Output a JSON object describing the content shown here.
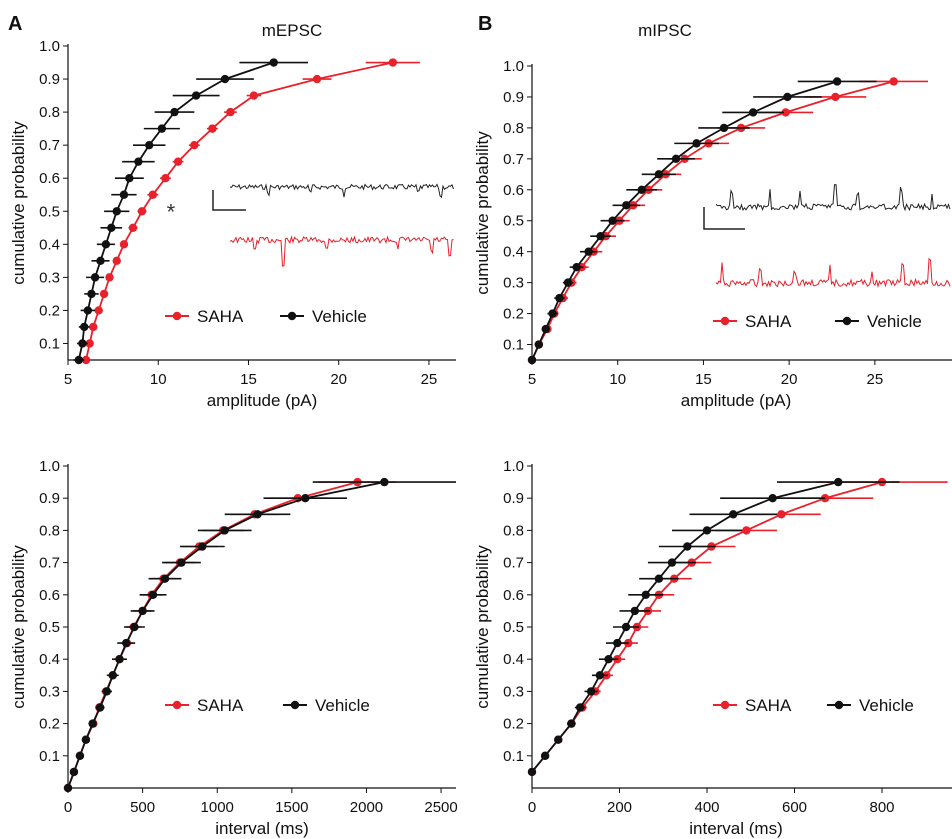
{
  "panel_letters": [
    "A",
    "B"
  ],
  "colors": {
    "SAHA": "#e8212b",
    "Vehicle": "#111111"
  },
  "chart_data": [
    {
      "id": "A-amp",
      "type": "line",
      "title": "mEPSC",
      "xlabel": "amplitude (pA)",
      "ylabel": "cumulative probability",
      "xlim": [
        5,
        26.5
      ],
      "ylim": [
        0.05,
        1.0
      ],
      "xticks": [
        5,
        10,
        15,
        20,
        25
      ],
      "yticks": [
        0.1,
        0.2,
        0.3,
        0.4,
        0.5,
        0.6,
        0.7,
        0.8,
        0.9,
        1.0
      ],
      "annotation": "*",
      "legend": [
        "SAHA",
        "Vehicle"
      ],
      "series": [
        {
          "name": "SAHA",
          "color": "#e8212b",
          "y": [
            0.05,
            0.1,
            0.15,
            0.2,
            0.25,
            0.3,
            0.35,
            0.4,
            0.45,
            0.5,
            0.55,
            0.6,
            0.65,
            0.7,
            0.75,
            0.8,
            0.85,
            0.9,
            0.95
          ],
          "x": [
            6.0,
            6.2,
            6.4,
            6.7,
            7.0,
            7.3,
            7.7,
            8.1,
            8.6,
            9.1,
            9.7,
            10.4,
            11.1,
            12.0,
            13.0,
            14.0,
            15.3,
            18.8,
            23.0
          ],
          "err": [
            0.15,
            0.15,
            0.15,
            0.15,
            0.2,
            0.2,
            0.2,
            0.2,
            0.25,
            0.25,
            0.3,
            0.3,
            0.3,
            0.3,
            0.3,
            0.35,
            0.4,
            0.8,
            1.5
          ]
        },
        {
          "name": "Vehicle",
          "color": "#111111",
          "y": [
            0.05,
            0.1,
            0.15,
            0.2,
            0.25,
            0.3,
            0.35,
            0.4,
            0.45,
            0.5,
            0.55,
            0.6,
            0.65,
            0.7,
            0.75,
            0.8,
            0.85,
            0.9,
            0.95
          ],
          "x": [
            5.6,
            5.8,
            5.9,
            6.1,
            6.3,
            6.5,
            6.8,
            7.1,
            7.4,
            7.7,
            8.1,
            8.4,
            8.9,
            9.5,
            10.2,
            10.9,
            12.1,
            13.7,
            16.4
          ],
          "err": [
            0.3,
            0.3,
            0.3,
            0.4,
            0.4,
            0.5,
            0.5,
            0.5,
            0.6,
            0.7,
            0.7,
            0.8,
            0.9,
            0.9,
            1.0,
            1.1,
            1.3,
            1.6,
            1.9
          ]
        }
      ]
    },
    {
      "id": "B-amp",
      "type": "line",
      "title": "mIPSC",
      "xlabel": "amplitude (pA)",
      "ylabel": "cumulative probability",
      "xlim": [
        5,
        29.5
      ],
      "ylim": [
        0.05,
        1.0
      ],
      "xticks": [
        5,
        10,
        15,
        20,
        25
      ],
      "yticks": [
        0.1,
        0.2,
        0.3,
        0.4,
        0.5,
        0.6,
        0.7,
        0.8,
        0.9,
        1.0
      ],
      "legend": [
        "SAHA",
        "Vehicle"
      ],
      "series": [
        {
          "name": "SAHA",
          "color": "#e8212b",
          "y": [
            0.05,
            0.1,
            0.15,
            0.2,
            0.25,
            0.3,
            0.35,
            0.4,
            0.45,
            0.5,
            0.55,
            0.6,
            0.65,
            0.7,
            0.75,
            0.8,
            0.85,
            0.9,
            0.95
          ],
          "x": [
            5.0,
            5.4,
            5.9,
            6.3,
            6.8,
            7.3,
            7.9,
            8.6,
            9.3,
            10.1,
            10.9,
            11.8,
            12.8,
            13.9,
            15.3,
            17.2,
            19.8,
            22.7,
            26.1
          ],
          "err": [
            0.2,
            0.2,
            0.2,
            0.2,
            0.3,
            0.3,
            0.4,
            0.5,
            0.6,
            0.6,
            0.7,
            0.8,
            0.9,
            1.0,
            1.2,
            1.4,
            1.6,
            1.8,
            2.0
          ]
        },
        {
          "name": "Vehicle",
          "color": "#111111",
          "y": [
            0.05,
            0.1,
            0.15,
            0.2,
            0.25,
            0.3,
            0.35,
            0.4,
            0.45,
            0.5,
            0.55,
            0.6,
            0.65,
            0.7,
            0.75,
            0.8,
            0.85,
            0.9,
            0.95
          ],
          "x": [
            5.0,
            5.4,
            5.8,
            6.2,
            6.6,
            7.1,
            7.6,
            8.3,
            9.0,
            9.7,
            10.5,
            11.4,
            12.4,
            13.4,
            14.6,
            16.2,
            17.9,
            19.9,
            22.8
          ],
          "err": [
            0.2,
            0.2,
            0.2,
            0.3,
            0.3,
            0.3,
            0.4,
            0.5,
            0.6,
            0.7,
            0.8,
            0.9,
            1.0,
            1.1,
            1.3,
            1.5,
            1.8,
            2.0,
            2.3
          ]
        }
      ]
    },
    {
      "id": "A-int",
      "type": "line",
      "title": "",
      "xlabel": "interval (ms)",
      "ylabel": "cumulative probability",
      "xlim": [
        0,
        2600
      ],
      "ylim": [
        0,
        1.0
      ],
      "xticks": [
        0,
        500,
        1000,
        1500,
        2000,
        2500
      ],
      "yticks": [
        0.1,
        0.2,
        0.3,
        0.4,
        0.5,
        0.6,
        0.7,
        0.8,
        0.9,
        1.0
      ],
      "legend": [
        "SAHA",
        "Vehicle"
      ],
      "series": [
        {
          "name": "SAHA",
          "color": "#e8212b",
          "y": [
            0.0,
            0.05,
            0.1,
            0.15,
            0.2,
            0.25,
            0.3,
            0.35,
            0.4,
            0.45,
            0.5,
            0.55,
            0.6,
            0.65,
            0.7,
            0.75,
            0.8,
            0.85,
            0.9,
            0.95
          ],
          "x": [
            0,
            40,
            80,
            120,
            170,
            210,
            255,
            300,
            345,
            395,
            440,
            500,
            560,
            640,
            750,
            880,
            1040,
            1250,
            1540,
            1940
          ],
          "err": [
            0,
            10,
            10,
            15,
            20,
            20,
            25,
            30,
            35,
            40,
            50,
            60,
            70,
            80,
            100,
            120,
            140,
            160,
            200,
            260
          ]
        },
        {
          "name": "Vehicle",
          "color": "#111111",
          "y": [
            0.0,
            0.05,
            0.1,
            0.15,
            0.2,
            0.25,
            0.3,
            0.35,
            0.4,
            0.45,
            0.5,
            0.55,
            0.6,
            0.65,
            0.7,
            0.75,
            0.8,
            0.85,
            0.9,
            0.95
          ],
          "x": [
            0,
            40,
            80,
            120,
            165,
            215,
            260,
            300,
            345,
            390,
            445,
            500,
            570,
            650,
            760,
            900,
            1050,
            1270,
            1590,
            2120
          ],
          "err": [
            0,
            10,
            15,
            20,
            25,
            30,
            35,
            40,
            50,
            60,
            70,
            80,
            90,
            110,
            130,
            150,
            180,
            220,
            280,
            480
          ]
        }
      ]
    },
    {
      "id": "B-int",
      "type": "line",
      "title": "",
      "xlabel": "interval (ms)",
      "ylabel": "cumulative probability",
      "xlim": [
        0,
        960
      ],
      "ylim": [
        0,
        1.0
      ],
      "xticks": [
        0,
        200,
        400,
        600,
        800
      ],
      "yticks": [
        0.1,
        0.2,
        0.3,
        0.4,
        0.5,
        0.6,
        0.7,
        0.8,
        0.9,
        1.0
      ],
      "legend": [
        "SAHA",
        "Vehicle"
      ],
      "series": [
        {
          "name": "SAHA",
          "color": "#e8212b",
          "y": [
            0.05,
            0.1,
            0.15,
            0.2,
            0.25,
            0.3,
            0.35,
            0.4,
            0.45,
            0.5,
            0.55,
            0.6,
            0.65,
            0.7,
            0.75,
            0.8,
            0.85,
            0.9,
            0.95
          ],
          "x": [
            0,
            30,
            60,
            90,
            115,
            145,
            170,
            195,
            220,
            240,
            265,
            290,
            325,
            365,
            410,
            490,
            570,
            670,
            800
          ],
          "err": [
            3,
            3,
            5,
            8,
            10,
            12,
            15,
            18,
            22,
            26,
            30,
            35,
            40,
            45,
            55,
            70,
            90,
            110,
            150
          ]
        },
        {
          "name": "Vehicle",
          "color": "#111111",
          "y": [
            0.05,
            0.1,
            0.15,
            0.2,
            0.25,
            0.3,
            0.35,
            0.4,
            0.45,
            0.5,
            0.55,
            0.6,
            0.65,
            0.7,
            0.75,
            0.8,
            0.85,
            0.9,
            0.95
          ],
          "x": [
            0,
            30,
            60,
            90,
            110,
            135,
            155,
            175,
            195,
            215,
            235,
            260,
            290,
            320,
            355,
            400,
            460,
            550,
            700
          ],
          "err": [
            3,
            5,
            8,
            10,
            12,
            15,
            18,
            22,
            26,
            30,
            35,
            40,
            45,
            55,
            65,
            80,
            100,
            120,
            140
          ]
        }
      ]
    }
  ]
}
